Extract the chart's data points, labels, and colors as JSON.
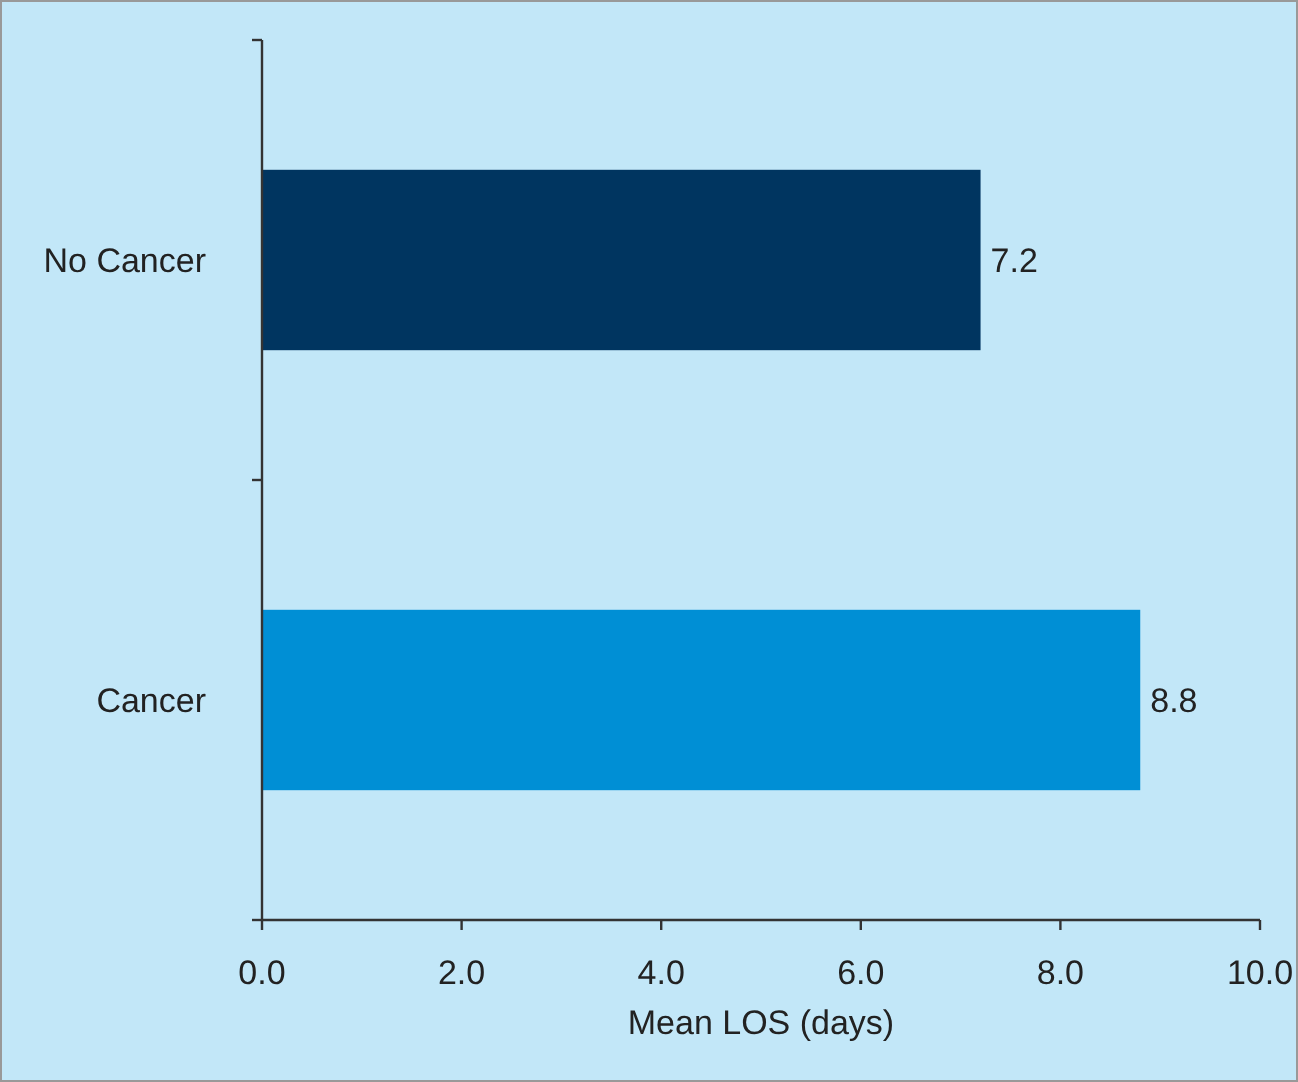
{
  "chart_data": {
    "type": "bar",
    "orientation": "horizontal",
    "categories": [
      "No Cancer",
      "Cancer"
    ],
    "values": [
      7.2,
      8.8
    ],
    "colors": [
      "#003560",
      "#008fd5"
    ],
    "xlabel": "Mean LOS (days)",
    "xlim": [
      0,
      10
    ],
    "xticks": [
      {
        "value": 0,
        "label": "0.0"
      },
      {
        "value": 2,
        "label": "2.0"
      },
      {
        "value": 4,
        "label": "4.0"
      },
      {
        "value": 6,
        "label": "6.0"
      },
      {
        "value": 8,
        "label": "8.0"
      },
      {
        "value": 10,
        "label": "10.0"
      }
    ],
    "data_labels": true
  }
}
